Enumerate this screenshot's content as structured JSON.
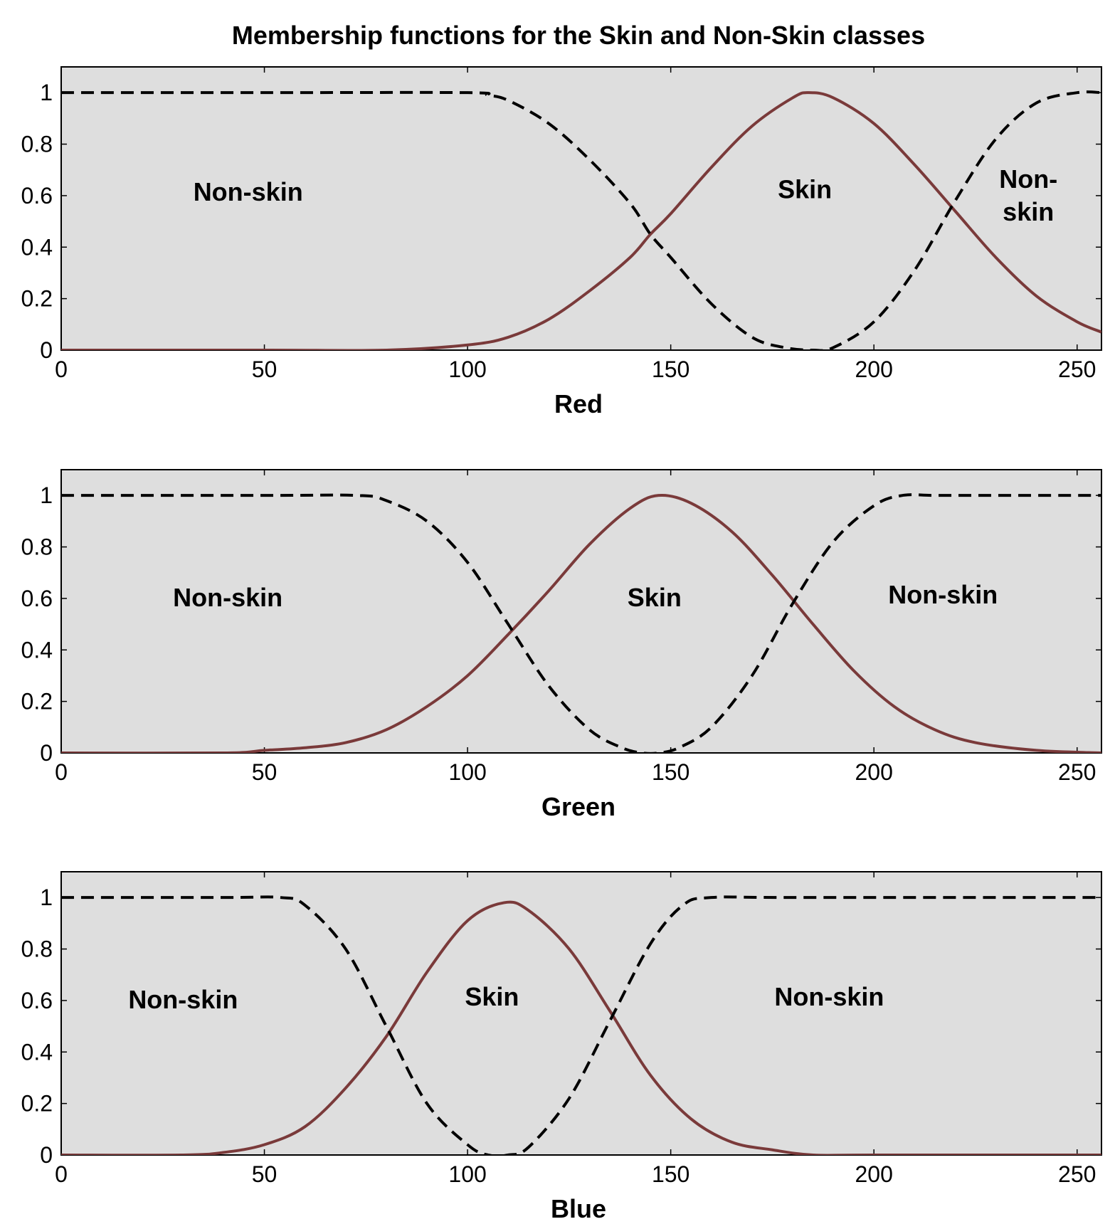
{
  "chart_data": {
    "type": "line",
    "title": "Membership functions for the Skin and Non-Skin classes",
    "xlim": [
      0,
      256
    ],
    "ylim": [
      0,
      1.1
    ],
    "xticks": [
      "0",
      "50",
      "100",
      "150",
      "200",
      "250"
    ],
    "yticks": [
      "0",
      "0.2",
      "0.4",
      "0.6",
      "0.8",
      "1"
    ],
    "grid": false,
    "colors": {
      "skin": "#7a3a3a",
      "nonskin": "#000000",
      "background": "#dedede"
    },
    "panels": [
      {
        "xlabel": "Red",
        "series": [
          {
            "key": "skin",
            "style": "solid",
            "color": "#7a3a3a",
            "x": [
              0,
              50,
              80,
              100,
              110,
              120,
              130,
              140,
              145,
              150,
              160,
              170,
              180,
              184,
              190,
              200,
              210,
              220,
              230,
              240,
              250,
              256
            ],
            "y": [
              0.0,
              0.0,
              0.0,
              0.02,
              0.05,
              0.12,
              0.23,
              0.36,
              0.45,
              0.53,
              0.71,
              0.87,
              0.98,
              1.0,
              0.98,
              0.88,
              0.72,
              0.54,
              0.36,
              0.21,
              0.11,
              0.07
            ]
          },
          {
            "key": "nonskin",
            "style": "dashed",
            "color": "#000000",
            "x": [
              0,
              50,
              100,
              105,
              110,
              120,
              130,
              140,
              145,
              150,
              160,
              170,
              178,
              185,
              190,
              200,
              210,
              220,
              230,
              240,
              250,
              256
            ],
            "y": [
              1.0,
              1.0,
              1.0,
              0.99,
              0.97,
              0.88,
              0.74,
              0.57,
              0.45,
              0.36,
              0.18,
              0.05,
              0.01,
              0.0,
              0.01,
              0.11,
              0.31,
              0.58,
              0.82,
              0.96,
              1.0,
              1.0
            ]
          }
        ],
        "labels": [
          {
            "lines": [
              "Non-skin"
            ],
            "x": 46,
            "y": 0.58
          },
          {
            "lines": [
              "Skin"
            ],
            "x": 183,
            "y": 0.59
          },
          {
            "lines": [
              "Non-",
              "skin"
            ],
            "x": 238,
            "y": 0.63
          }
        ]
      },
      {
        "xlabel": "Green",
        "series": [
          {
            "key": "skin",
            "style": "solid",
            "color": "#7a3a3a",
            "x": [
              0,
              40,
              50,
              60,
              70,
              80,
              90,
              100,
              110,
              120,
              130,
              140,
              147,
              155,
              165,
              175,
              185,
              195,
              205,
              215,
              225,
              240,
              256
            ],
            "y": [
              0.0,
              0.0,
              0.01,
              0.02,
              0.04,
              0.09,
              0.18,
              0.3,
              0.46,
              0.63,
              0.81,
              0.95,
              1.0,
              0.97,
              0.86,
              0.69,
              0.5,
              0.32,
              0.18,
              0.09,
              0.04,
              0.01,
              0.0
            ]
          },
          {
            "key": "nonskin",
            "style": "dashed",
            "color": "#000000",
            "x": [
              0,
              50,
              73,
              80,
              90,
              100,
              110,
              120,
              130,
              138,
              143,
              147,
              152,
              160,
              170,
              180,
              190,
              200,
              207,
              215,
              230,
              256
            ],
            "y": [
              1.0,
              1.0,
              1.0,
              0.98,
              0.9,
              0.74,
              0.5,
              0.26,
              0.09,
              0.02,
              0.0,
              0.0,
              0.02,
              0.1,
              0.3,
              0.58,
              0.82,
              0.96,
              1.0,
              1.0,
              1.0,
              1.0
            ]
          }
        ],
        "labels": [
          {
            "lines": [
              "Non-skin"
            ],
            "x": 41,
            "y": 0.57
          },
          {
            "lines": [
              "Skin"
            ],
            "x": 146,
            "y": 0.57
          },
          {
            "lines": [
              "Non-skin"
            ],
            "x": 217,
            "y": 0.58
          }
        ]
      },
      {
        "xlabel": "Blue",
        "series": [
          {
            "key": "skin",
            "style": "solid",
            "color": "#7a3a3a",
            "x": [
              0,
              30,
              40,
              50,
              60,
              70,
              80,
              90,
              100,
              109,
              115,
              125,
              135,
              145,
              155,
              165,
              175,
              185,
              200,
              256
            ],
            "y": [
              0.0,
              0.0,
              0.01,
              0.04,
              0.11,
              0.26,
              0.46,
              0.71,
              0.91,
              0.98,
              0.95,
              0.8,
              0.56,
              0.31,
              0.14,
              0.05,
              0.02,
              0.0,
              0.0,
              0.0
            ]
          },
          {
            "key": "nonskin",
            "style": "dashed",
            "color": "#000000",
            "x": [
              0,
              40,
              54,
              60,
              70,
              80,
              90,
              100,
              105,
              110,
              115,
              125,
              135,
              145,
              153,
              160,
              180,
              256
            ],
            "y": [
              1.0,
              1.0,
              1.0,
              0.97,
              0.8,
              0.5,
              0.2,
              0.04,
              0.0,
              0.0,
              0.03,
              0.22,
              0.52,
              0.82,
              0.97,
              1.0,
              1.0,
              1.0
            ]
          }
        ],
        "labels": [
          {
            "lines": [
              "Non-skin"
            ],
            "x": 30,
            "y": 0.57
          },
          {
            "lines": [
              "Skin"
            ],
            "x": 106,
            "y": 0.58
          },
          {
            "lines": [
              "Non-skin"
            ],
            "x": 189,
            "y": 0.58
          }
        ]
      }
    ]
  }
}
